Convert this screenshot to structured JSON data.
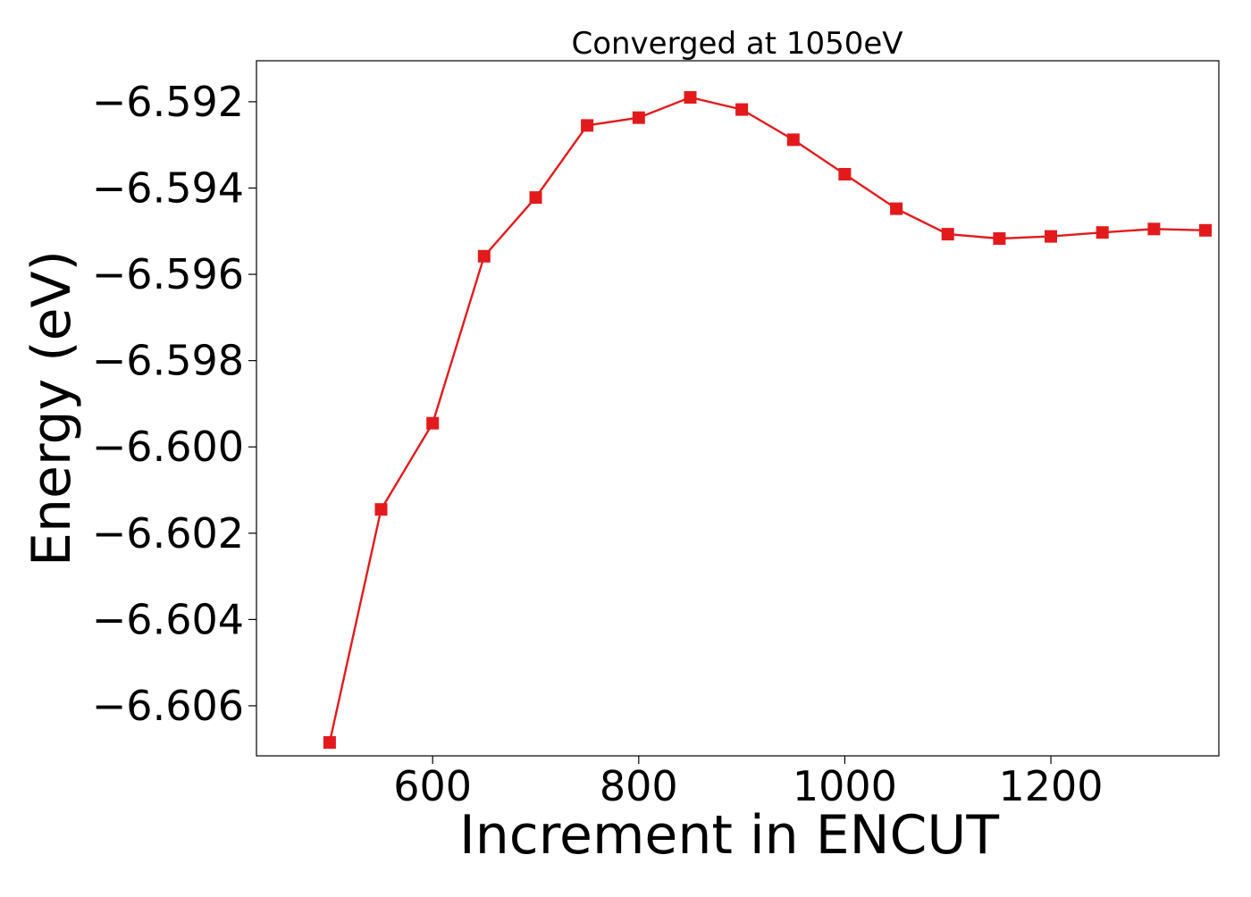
{
  "chart_data": {
    "type": "line",
    "title": "Converged at 1050eV",
    "xlabel": "Increment in ENCUT",
    "ylabel": "Energy (eV)",
    "x": [
      500,
      550,
      600,
      650,
      700,
      750,
      800,
      850,
      900,
      950,
      1000,
      1050,
      1100,
      1150,
      1200,
      1250,
      1300,
      1350
    ],
    "series": [
      {
        "name": "",
        "values": [
          -6.60685,
          -6.60145,
          -6.59945,
          -6.59558,
          -6.59422,
          -6.59255,
          -6.59237,
          -6.5919,
          -6.59218,
          -6.59288,
          -6.59368,
          -6.59448,
          -6.59507,
          -6.59517,
          -6.59512,
          -6.59503,
          -6.59495,
          -6.59498
        ],
        "color": "#e31a1c",
        "marker": "square"
      }
    ],
    "xlim": [
      429,
      1363
    ],
    "ylim": [
      -6.60716,
      -6.59105
    ],
    "xticks": [
      600,
      800,
      1000,
      1200
    ],
    "xtick_labels": [
      "600",
      "800",
      "1000",
      "1200"
    ],
    "yticks": [
      -6.592,
      -6.594,
      -6.596,
      -6.598,
      -6.6,
      -6.602,
      -6.604,
      -6.606
    ],
    "ytick_labels": [
      "−6.592",
      "−6.594",
      "−6.596",
      "−6.598",
      "−6.600",
      "−6.602",
      "−6.604",
      "−6.606"
    ],
    "grid": false,
    "legend": "none"
  }
}
